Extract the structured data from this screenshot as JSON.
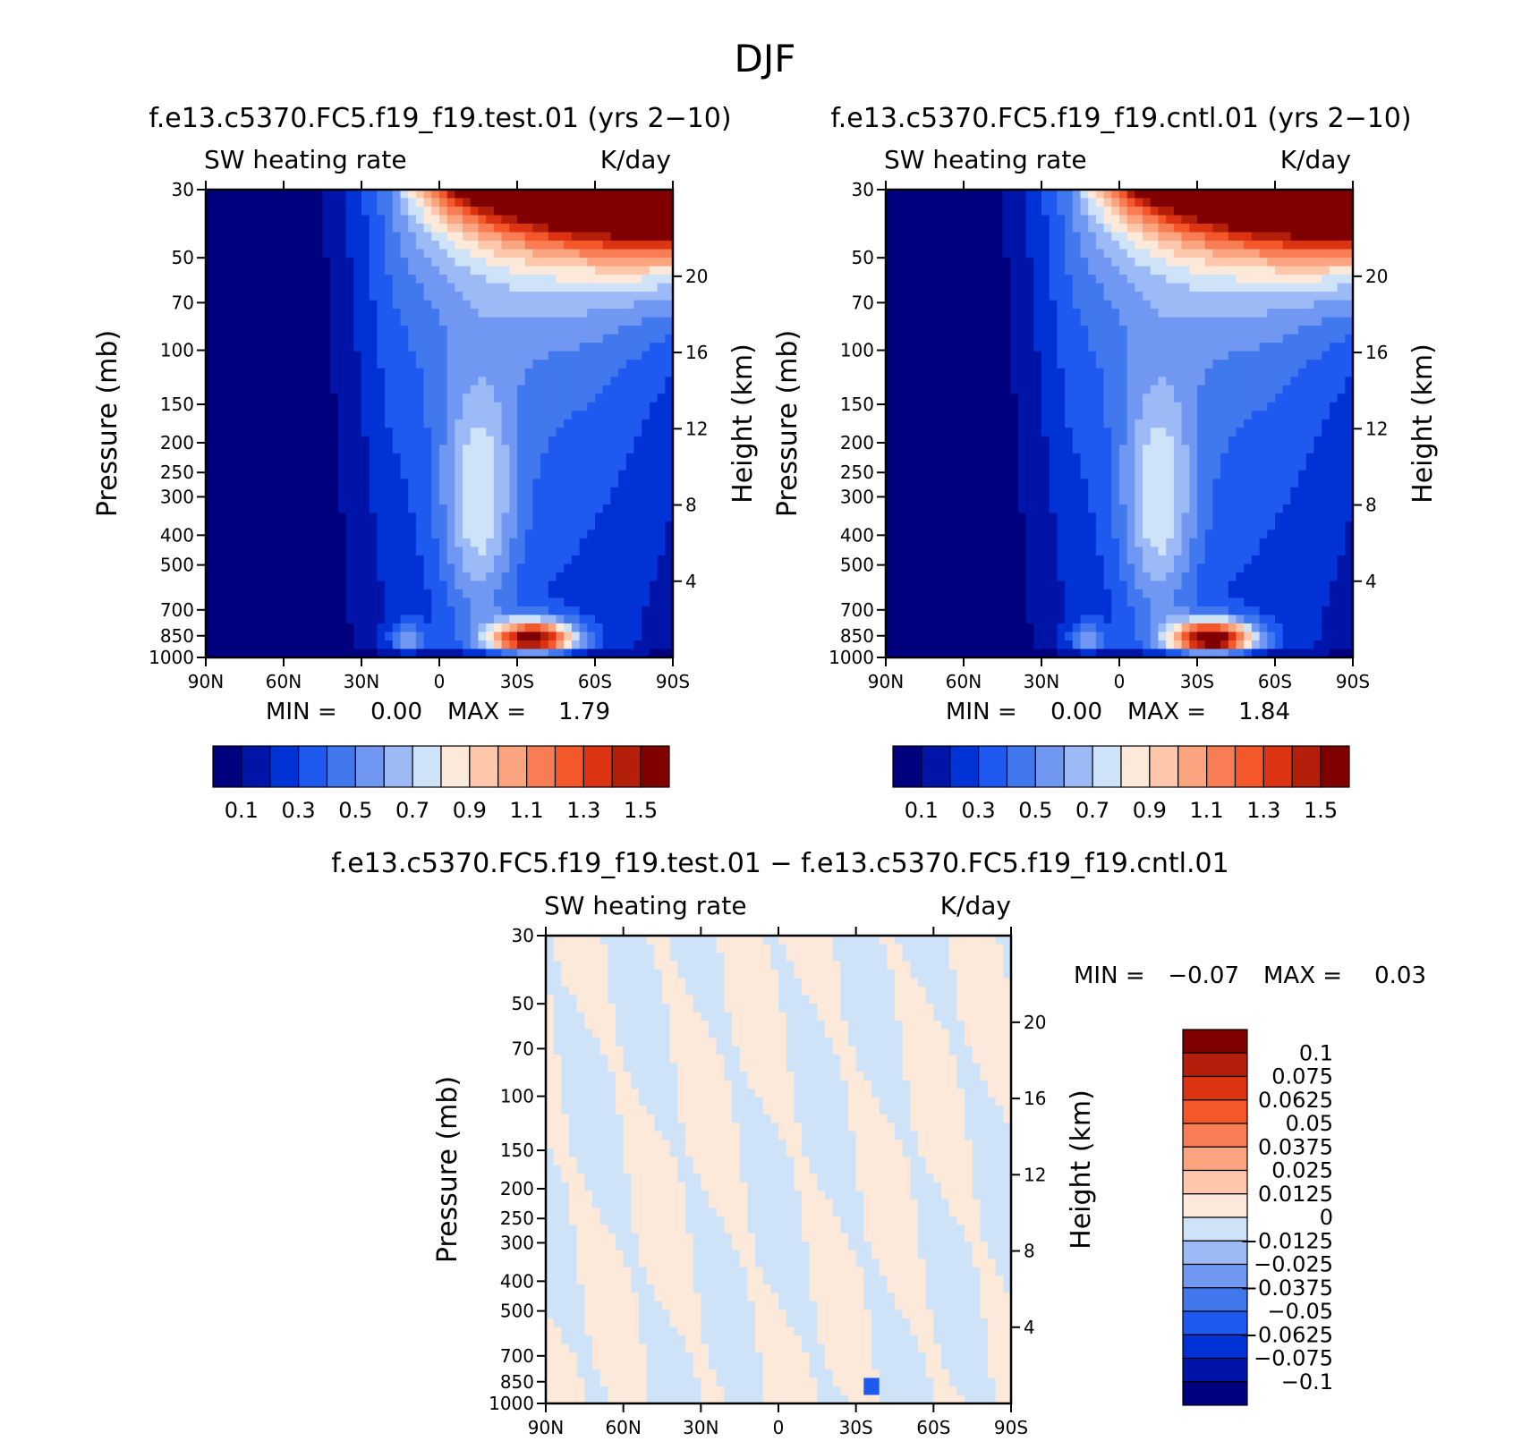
{
  "main_title": "DJF",
  "panels": [
    {
      "id": "test",
      "title": "f.e13.c5370.FC5.f19_f19.test.01 (yrs 2−10)",
      "left_label": "SW heating rate",
      "right_label": "K/day",
      "stats": {
        "min_label": "MIN =",
        "min_value": "0.00",
        "max_label": "MAX =",
        "max_value": "1.79"
      }
    },
    {
      "id": "cntl",
      "title": "f.e13.c5370.FC5.f19_f19.cntl.01 (yrs 2−10)",
      "left_label": "SW heating rate",
      "right_label": "K/day",
      "stats": {
        "min_label": "MIN =",
        "min_value": "0.00",
        "max_label": "MAX =",
        "max_value": "1.84"
      }
    },
    {
      "id": "diff",
      "title": "f.e13.c5370.FC5.f19_f19.test.01 − f.e13.c5370.FC5.f19_f19.cntl.01",
      "left_label": "SW heating rate",
      "right_label": "K/day",
      "stats": {
        "min_label": "MIN =",
        "min_value": "−0.07",
        "max_label": "MAX =",
        "max_value": "0.03"
      }
    }
  ],
  "chart_data": [
    {
      "type": "heatmap",
      "title": "f.e13.c5370.FC5.f19_f19.test.01 (yrs 2−10)",
      "variable": "SW heating rate",
      "units": "K/day",
      "xlabel": "",
      "ylabel": "Pressure (mb)",
      "y2label": "Height (km)",
      "x_ticks": [
        "90N",
        "60N",
        "30N",
        "0",
        "30S",
        "60S",
        "90S"
      ],
      "y_ticks": [
        30,
        50,
        70,
        100,
        150,
        200,
        250,
        300,
        400,
        500,
        700,
        850,
        1000
      ],
      "y2_ticks": [
        4,
        8,
        12,
        16,
        20
      ],
      "ylim": [
        1000,
        30
      ],
      "y_scale": "log",
      "min": 0.0,
      "max": 1.79,
      "levels": [
        0.1,
        0.2,
        0.3,
        0.4,
        0.5,
        0.6,
        0.7,
        0.8,
        0.9,
        1.0,
        1.1,
        1.2,
        1.3,
        1.4,
        1.5
      ],
      "colorbar_labels": [
        "0.1",
        "0.3",
        "0.5",
        "0.7",
        "0.9",
        "1.1",
        "1.3",
        "1.5"
      ],
      "colors": [
        "#00007f",
        "#0014a8",
        "#0032d6",
        "#1e5af0",
        "#4178ee",
        "#7098f2",
        "#9cbaf5",
        "#cfe3f8",
        "#fde9d9",
        "#fcc7ab",
        "#fba580",
        "#f97d54",
        "#f4572a",
        "#dc3413",
        "#b41f0b",
        "#800000"
      ]
    },
    {
      "type": "heatmap",
      "title": "f.e13.c5370.FC5.f19_f19.cntl.01 (yrs 2−10)",
      "variable": "SW heating rate",
      "units": "K/day",
      "xlabel": "",
      "ylabel": "Pressure (mb)",
      "y2label": "Height (km)",
      "x_ticks": [
        "90N",
        "60N",
        "30N",
        "0",
        "30S",
        "60S",
        "90S"
      ],
      "y_ticks": [
        30,
        50,
        70,
        100,
        150,
        200,
        250,
        300,
        400,
        500,
        700,
        850,
        1000
      ],
      "y2_ticks": [
        4,
        8,
        12,
        16,
        20
      ],
      "ylim": [
        1000,
        30
      ],
      "y_scale": "log",
      "min": 0.0,
      "max": 1.84,
      "levels": [
        0.1,
        0.2,
        0.3,
        0.4,
        0.5,
        0.6,
        0.7,
        0.8,
        0.9,
        1.0,
        1.1,
        1.2,
        1.3,
        1.4,
        1.5
      ],
      "colorbar_labels": [
        "0.1",
        "0.3",
        "0.5",
        "0.7",
        "0.9",
        "1.1",
        "1.3",
        "1.5"
      ],
      "colors": [
        "#00007f",
        "#0014a8",
        "#0032d6",
        "#1e5af0",
        "#4178ee",
        "#7098f2",
        "#9cbaf5",
        "#cfe3f8",
        "#fde9d9",
        "#fcc7ab",
        "#fba580",
        "#f97d54",
        "#f4572a",
        "#dc3413",
        "#b41f0b",
        "#800000"
      ]
    },
    {
      "type": "heatmap",
      "title": "f.e13.c5370.FC5.f19_f19.test.01 − f.e13.c5370.FC5.f19_f19.cntl.01",
      "variable": "SW heating rate",
      "units": "K/day",
      "xlabel": "",
      "ylabel": "Pressure (mb)",
      "y2label": "Height (km)",
      "x_ticks": [
        "90N",
        "60N",
        "30N",
        "0",
        "30S",
        "60S",
        "90S"
      ],
      "y_ticks": [
        30,
        50,
        70,
        100,
        150,
        200,
        250,
        300,
        400,
        500,
        700,
        850,
        1000
      ],
      "y2_ticks": [
        4,
        8,
        12,
        16,
        20
      ],
      "ylim": [
        1000,
        30
      ],
      "y_scale": "log",
      "min": -0.07,
      "max": 0.03,
      "levels": [
        -0.1,
        -0.075,
        -0.0625,
        -0.05,
        -0.0375,
        -0.025,
        -0.0125,
        0,
        0.0125,
        0.025,
        0.0375,
        0.05,
        0.0625,
        0.075,
        0.1
      ],
      "colorbar_labels": [
        "0.1",
        "0.075",
        "0.0625",
        "0.05",
        "0.0375",
        "0.025",
        "0.0125",
        "0",
        "−0.0125",
        "−0.025",
        "−0.0375",
        "−0.05",
        "−0.0625",
        "−0.075",
        "−0.1"
      ],
      "colors": [
        "#00007f",
        "#0014a8",
        "#0032d6",
        "#1e5af0",
        "#4178ee",
        "#7098f2",
        "#9cbaf5",
        "#cfe3f8",
        "#fde9d9",
        "#fcc7ab",
        "#fba580",
        "#f97d54",
        "#f4572a",
        "#dc3413",
        "#b41f0b",
        "#800000"
      ]
    }
  ]
}
